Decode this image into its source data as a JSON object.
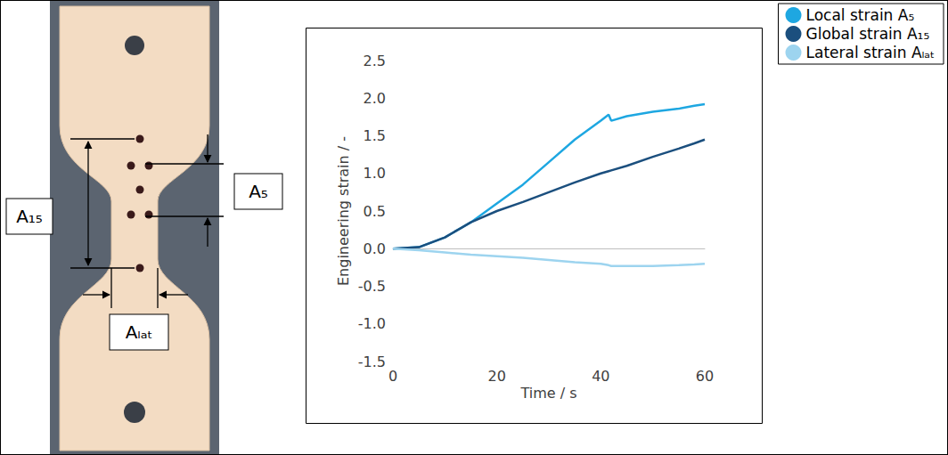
{
  "specimen": {
    "gauge_labels": {
      "global": "A₁₅",
      "local": "A₅",
      "lateral": "Aₗₐₜ"
    }
  },
  "chart_data": {
    "type": "line",
    "x_label": "Time / s",
    "y_label": "Engineering strain / -",
    "x": [
      0,
      5,
      10,
      15,
      20,
      25,
      30,
      35,
      40,
      41.5,
      42,
      45,
      50,
      55,
      58,
      60
    ],
    "series": [
      {
        "name": "Local strain A₅",
        "color": "#1ea7e1",
        "values": [
          0,
          0.02,
          0.15,
          0.35,
          0.6,
          0.85,
          1.15,
          1.45,
          1.7,
          1.78,
          1.7,
          1.76,
          1.82,
          1.86,
          1.9,
          1.92
        ]
      },
      {
        "name": "Global strain A₁₅",
        "color": "#1b4f7e",
        "values": [
          0,
          0.02,
          0.15,
          0.35,
          0.5,
          0.62,
          0.75,
          0.88,
          1.0,
          1.03,
          1.04,
          1.1,
          1.22,
          1.33,
          1.4,
          1.45
        ]
      },
      {
        "name": "Lateral strain Aₗₐₜ",
        "color": "#9dd4ef",
        "values": [
          0,
          -0.02,
          -0.05,
          -0.08,
          -0.1,
          -0.12,
          -0.15,
          -0.18,
          -0.2,
          -0.22,
          -0.23,
          -0.23,
          -0.23,
          -0.22,
          -0.21,
          -0.2
        ]
      }
    ],
    "xlim": [
      0,
      60
    ],
    "xticks": [
      0,
      20,
      40,
      60
    ],
    "ylim": [
      -1.5,
      2.5
    ],
    "yticks": [
      -1.5,
      {
        "value": -1,
        "label": "-1.0"
      },
      -0.5,
      {
        "value": 0,
        "label": "0.0"
      },
      0.5,
      {
        "value": 1,
        "label": "1.0"
      },
      1.5,
      {
        "value": 2,
        "label": "2.0"
      },
      2.5
    ],
    "grid": false,
    "legend": "upper right"
  }
}
